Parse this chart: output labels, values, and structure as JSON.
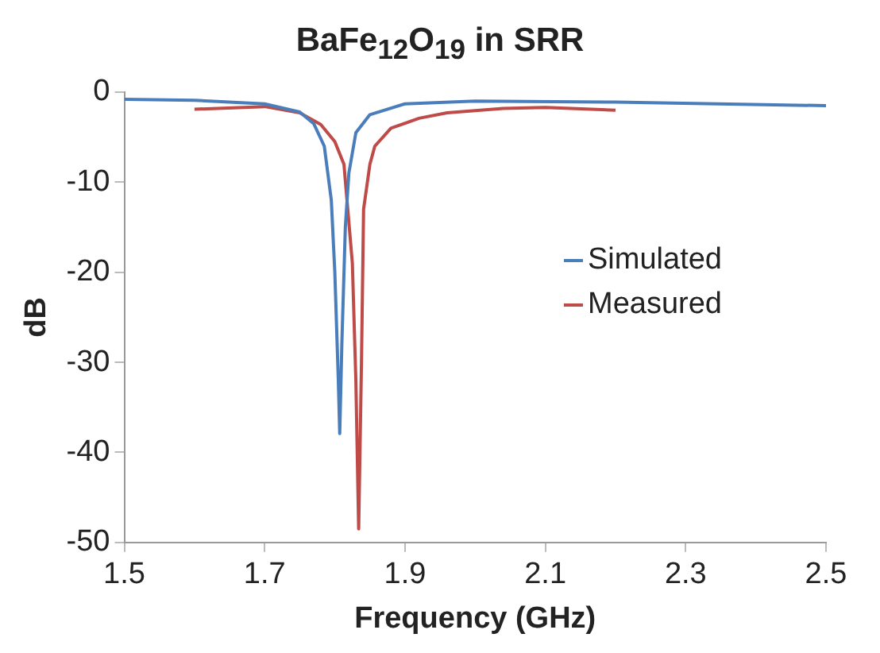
{
  "chart_data": {
    "type": "line",
    "title": "BaFe$_{12}$O$_{19}$ in SRR",
    "xlabel": "Frequency (GHz)",
    "ylabel": "dB",
    "xlim": [
      1.5,
      2.5
    ],
    "xticks": [
      {
        "value": 1.5,
        "label": "1.5"
      },
      {
        "value": 1.7,
        "label": "1.7"
      },
      {
        "value": 1.9,
        "label": "1.9"
      },
      {
        "value": 2.1,
        "label": "2.1"
      },
      {
        "value": 2.3,
        "label": "2.3"
      },
      {
        "value": 2.5,
        "label": "2.5"
      }
    ],
    "ylim": [
      -50,
      0
    ],
    "yticks": [
      -50,
      -40,
      -30,
      -20,
      -10,
      0
    ],
    "grid": false,
    "legend": "right",
    "marker": "none",
    "line_style": "solid",
    "series": [
      {
        "name": "Simulated",
        "color": "#4a7ebb",
        "x": [
          1.5,
          1.6,
          1.7,
          1.75,
          1.77,
          1.785,
          1.795,
          1.8,
          1.805,
          1.807,
          1.81,
          1.815,
          1.82,
          1.83,
          1.85,
          1.9,
          2.0,
          2.2,
          2.5
        ],
        "values": [
          -0.8,
          -0.9,
          -1.3,
          -2.2,
          -3.5,
          -6,
          -12,
          -20,
          -32,
          -37.9,
          -28,
          -15,
          -9,
          -4.5,
          -2.5,
          -1.3,
          -1.0,
          -1.1,
          -1.5
        ]
      },
      {
        "name": "Measured",
        "color": "#be4b48",
        "x": [
          1.6,
          1.7,
          1.75,
          1.78,
          1.8,
          1.813,
          1.825,
          1.83,
          1.834,
          1.838,
          1.841,
          1.85,
          1.857,
          1.88,
          1.92,
          1.96,
          2.04,
          2.1,
          2.2
        ],
        "values": [
          -1.9,
          -1.6,
          -2.3,
          -3.6,
          -5.5,
          -8,
          -19,
          -32,
          -48.5,
          -30,
          -13,
          -8,
          -6,
          -4,
          -2.9,
          -2.3,
          -1.8,
          -1.7,
          -2.0
        ]
      }
    ]
  }
}
